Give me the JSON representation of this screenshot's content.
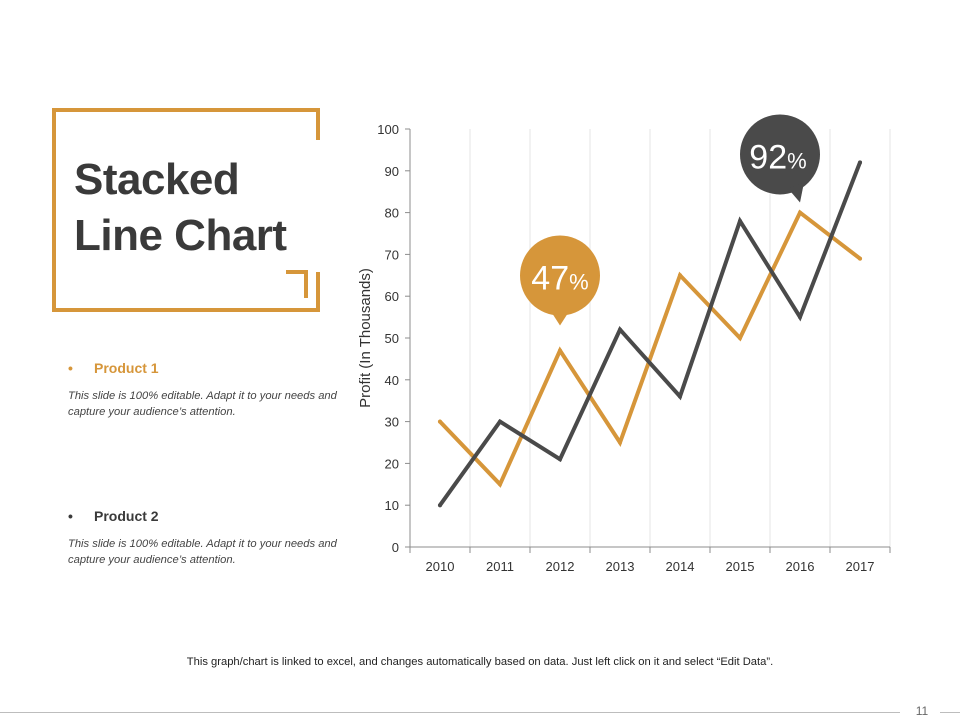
{
  "slide": {
    "title_line1": "Stacked",
    "title_line2": "Line Chart",
    "footer_note": "This graph/chart is linked to excel, and changes automatically based on data. Just left click on it and select “Edit Data”.",
    "page_number": "11"
  },
  "products": [
    {
      "label": "Product 1",
      "description": "This slide is 100% editable. Adapt it to your needs and capture your audience’s attention."
    },
    {
      "label": "Product 2",
      "description": "This slide is 100% editable. Adapt it to your needs and capture your audience’s attention."
    }
  ],
  "colors": {
    "product1": "#d6963a",
    "product2": "#4a4a4a",
    "grid": "#e6e6e6",
    "axis": "#8c8c8c"
  },
  "chart_data": {
    "type": "line",
    "x": [
      "2010",
      "2011",
      "2012",
      "2013",
      "2014",
      "2015",
      "2016",
      "2017"
    ],
    "series": [
      {
        "name": "Product 1",
        "values": [
          30,
          15,
          47,
          25,
          65,
          50,
          80,
          69
        ]
      },
      {
        "name": "Product 2",
        "values": [
          10,
          30,
          21,
          52,
          36,
          78,
          55,
          92
        ]
      }
    ],
    "ylabel": "Profit (In Thousands)",
    "ylim": [
      0,
      100
    ],
    "yticks": [
      0,
      10,
      20,
      30,
      40,
      50,
      60,
      70,
      80,
      90,
      100
    ],
    "grid": "vertical",
    "callouts": [
      {
        "series": 0,
        "index": 2,
        "number": "47",
        "unit": "%"
      },
      {
        "series": 1,
        "index": 7,
        "number": "92",
        "unit": "%"
      }
    ]
  }
}
